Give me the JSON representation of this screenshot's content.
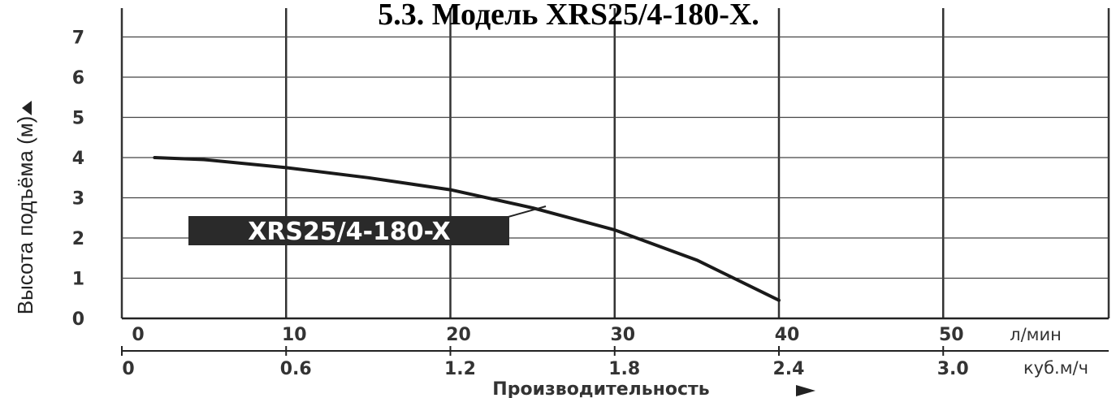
{
  "chart_data": {
    "type": "line",
    "title": "5.3. Модель XRS25/4-180-X.",
    "ylabel": "Высота подъёма (м)",
    "xlabel": "Производительность",
    "y_ticks": [
      "0",
      "1",
      "2",
      "3",
      "4",
      "5",
      "6",
      "7"
    ],
    "ylim": [
      0,
      7
    ],
    "x_primary": {
      "unit": "л/мин",
      "ticks": [
        "0",
        "10",
        "20",
        "30",
        "40",
        "50"
      ],
      "range": [
        0,
        60
      ]
    },
    "x_secondary": {
      "unit": "куб.м/ч",
      "ticks": [
        "0",
        "0.6",
        "1.2",
        "1.8",
        "2.4",
        "3.0"
      ]
    },
    "grid": true,
    "series": [
      {
        "name": "XRS25/4-180-X",
        "x": [
          2,
          5,
          10,
          15,
          20,
          25,
          30,
          35,
          40
        ],
        "y": [
          4.0,
          3.95,
          3.75,
          3.5,
          3.2,
          2.75,
          2.2,
          1.45,
          0.45
        ]
      }
    ],
    "colors": {
      "line": "#1a1a1a",
      "label_bg": "#2a2a2a",
      "label_text": "#ffffff",
      "grid": "#333333"
    }
  }
}
